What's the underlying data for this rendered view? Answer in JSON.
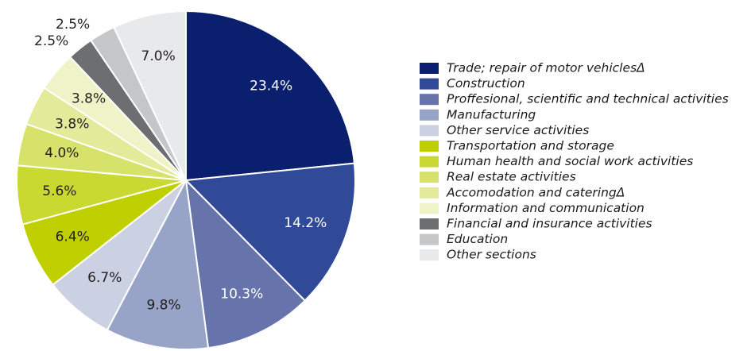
{
  "chart_data": {
    "type": "pie",
    "categories": [
      "Trade; repair of motor vehiclesΔ",
      "Construction",
      "Proffesional, scientific and technical activities",
      "Manufacturing",
      "Other service activities",
      "Transportation and storage",
      "Human health and social work activities",
      "Real estate activities",
      "Accomodation and cateringΔ",
      "Information and communication",
      "Financial and insurance activities",
      "Education",
      "Other sections"
    ],
    "values": [
      23.4,
      14.2,
      10.3,
      9.8,
      6.7,
      6.4,
      5.6,
      4.0,
      3.8,
      3.8,
      2.5,
      2.5,
      7.0
    ],
    "value_labels": [
      "23.4%",
      "14.2%",
      "10.3%",
      "9.8%",
      "6.7%",
      "6.4%",
      "5.6%",
      "4.0%",
      "3.8%",
      "3.8%",
      "2.5%",
      "2.5%",
      "7.0%"
    ],
    "colors": [
      "#0a1f6e",
      "#314a97",
      "#6674ab",
      "#98a3c8",
      "#ccd0e3",
      "#bfcf00",
      "#cad932",
      "#d6e26a",
      "#e3eb9b",
      "#eef3c8",
      "#6d6e70",
      "#c5c6c8",
      "#e8e9ea"
    ],
    "legend": "right"
  }
}
